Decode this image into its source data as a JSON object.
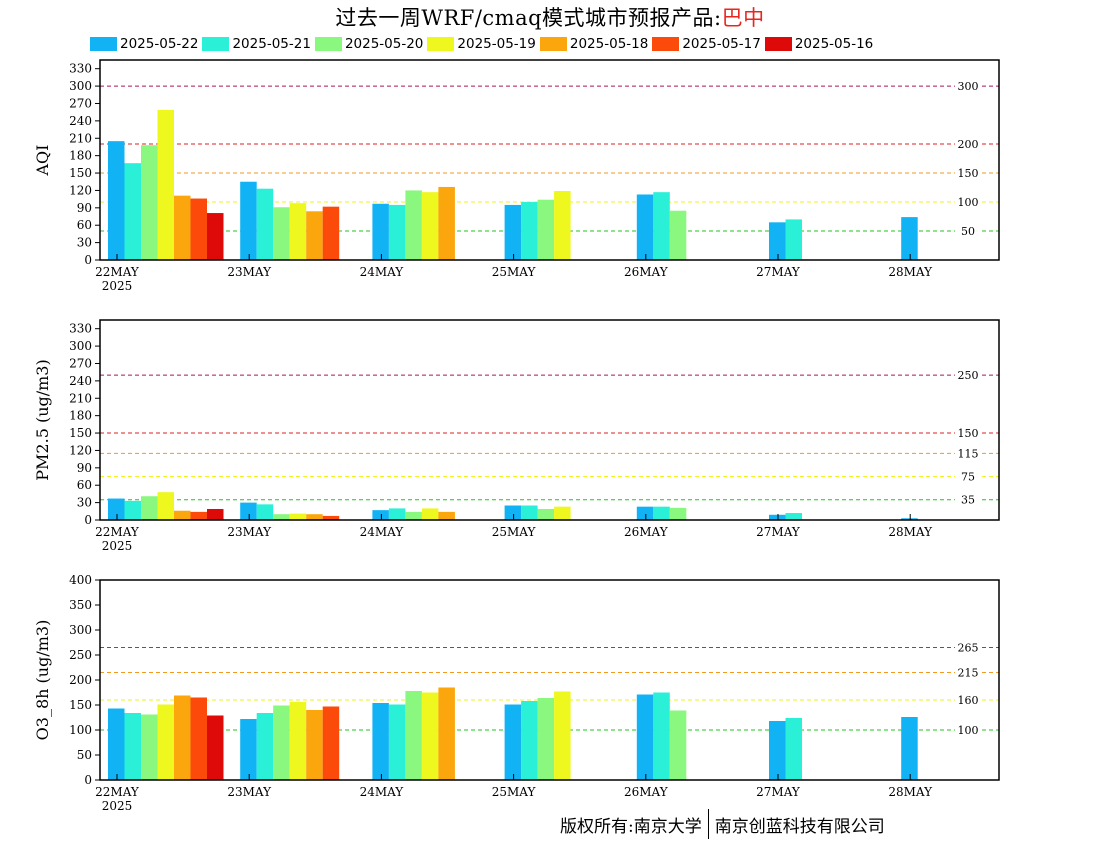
{
  "title": {
    "prefix": "过去一周WRF/cmaq模式城市预报产品:",
    "city": "巴中"
  },
  "legend": [
    {
      "label": "2025-05-22",
      "color": "#12b3f5"
    },
    {
      "label": "2025-05-21",
      "color": "#2af0d8"
    },
    {
      "label": "2025-05-20",
      "color": "#8af77e"
    },
    {
      "label": "2025-05-19",
      "color": "#eef71e"
    },
    {
      "label": "2025-05-18",
      "color": "#fba60c"
    },
    {
      "label": "2025-05-17",
      "color": "#fb4a0a"
    },
    {
      "label": "2025-05-16",
      "color": "#de0a0a"
    }
  ],
  "copyright": {
    "left": "版权所有:南京大学",
    "right": "南京创蓝科技有限公司"
  },
  "chart_data": [
    {
      "type": "bar",
      "ylabel": "AQI",
      "ylim": [
        0,
        345
      ],
      "yticks": [
        0,
        30,
        60,
        90,
        120,
        150,
        180,
        210,
        240,
        270,
        300,
        330
      ],
      "categories": [
        "22MAY",
        "23MAY",
        "24MAY",
        "25MAY",
        "26MAY",
        "27MAY",
        "28MAY"
      ],
      "year_label": "2025",
      "series": [
        {
          "name": "2025-05-22",
          "values": [
            205,
            135,
            97,
            95,
            113,
            65,
            74
          ]
        },
        {
          "name": "2025-05-21",
          "values": [
            167,
            123,
            95,
            100,
            117,
            70,
            null
          ]
        },
        {
          "name": "2025-05-20",
          "values": [
            198,
            91,
            120,
            104,
            85,
            null,
            null
          ]
        },
        {
          "name": "2025-05-19",
          "values": [
            259,
            98,
            117,
            119,
            null,
            null,
            null
          ]
        },
        {
          "name": "2025-05-18",
          "values": [
            111,
            84,
            126,
            null,
            null,
            null,
            null
          ]
        },
        {
          "name": "2025-05-17",
          "values": [
            106,
            92,
            null,
            null,
            null,
            null,
            null
          ]
        },
        {
          "name": "2025-05-16",
          "values": [
            81,
            null,
            null,
            null,
            null,
            null,
            null
          ]
        }
      ],
      "thresholds": [
        {
          "value": 50,
          "label": "50",
          "color": "#22c41e"
        },
        {
          "value": 100,
          "label": "100",
          "color": "#f2f21e"
        },
        {
          "value": 150,
          "label": "150",
          "color": "#f29a1e"
        },
        {
          "value": 200,
          "label": "200",
          "color": "#dd2222"
        },
        {
          "value": 300,
          "label": "300",
          "color": "#a8145a"
        }
      ]
    },
    {
      "type": "bar",
      "ylabel": "PM2.5 (ug/m3)",
      "ylim": [
        0,
        345
      ],
      "yticks": [
        0,
        30,
        60,
        90,
        120,
        150,
        180,
        210,
        240,
        270,
        300,
        330
      ],
      "categories": [
        "22MAY",
        "23MAY",
        "24MAY",
        "25MAY",
        "26MAY",
        "27MAY",
        "28MAY"
      ],
      "year_label": "2025",
      "series": [
        {
          "name": "2025-05-22",
          "values": [
            37,
            30,
            17,
            25,
            23,
            9,
            3
          ]
        },
        {
          "name": "2025-05-21",
          "values": [
            33,
            27,
            20,
            25,
            23,
            12,
            null
          ]
        },
        {
          "name": "2025-05-20",
          "values": [
            41,
            10,
            14,
            19,
            21,
            null,
            null
          ]
        },
        {
          "name": "2025-05-19",
          "values": [
            48,
            11,
            20,
            23,
            null,
            null,
            null
          ]
        },
        {
          "name": "2025-05-18",
          "values": [
            16,
            10,
            14,
            null,
            null,
            null,
            null
          ]
        },
        {
          "name": "2025-05-17",
          "values": [
            14,
            7,
            null,
            null,
            null,
            null,
            null
          ]
        },
        {
          "name": "2025-05-16",
          "values": [
            19,
            null,
            null,
            null,
            null,
            null,
            null
          ]
        }
      ],
      "thresholds": [
        {
          "value": 35,
          "label": "35",
          "color": "#22c41e"
        },
        {
          "value": 75,
          "label": "75",
          "color": "#f2f21e"
        },
        {
          "value": 115,
          "label": "115",
          "color": "#f29a1e"
        },
        {
          "value": 150,
          "label": "150",
          "color": "#dd2222"
        },
        {
          "value": 250,
          "label": "250",
          "color": "#a8145a"
        }
      ]
    },
    {
      "type": "bar",
      "ylabel": "O3_8h (ug/m3)",
      "ylim": [
        0,
        400
      ],
      "yticks": [
        0,
        50,
        100,
        150,
        200,
        250,
        300,
        350,
        400
      ],
      "categories": [
        "22MAY",
        "23MAY",
        "24MAY",
        "25MAY",
        "26MAY",
        "27MAY",
        "28MAY"
      ],
      "year_label": "2025",
      "series": [
        {
          "name": "2025-05-22",
          "values": [
            143,
            122,
            154,
            151,
            171,
            118,
            126
          ]
        },
        {
          "name": "2025-05-21",
          "values": [
            134,
            134,
            151,
            158,
            175,
            124,
            null
          ]
        },
        {
          "name": "2025-05-20",
          "values": [
            131,
            149,
            178,
            164,
            139,
            null,
            null
          ]
        },
        {
          "name": "2025-05-19",
          "values": [
            151,
            156,
            175,
            177,
            null,
            null,
            null
          ]
        },
        {
          "name": "2025-05-18",
          "values": [
            169,
            140,
            185,
            null,
            null,
            null,
            null
          ]
        },
        {
          "name": "2025-05-17",
          "values": [
            165,
            147,
            null,
            null,
            null,
            null,
            null
          ]
        },
        {
          "name": "2025-05-16",
          "values": [
            129,
            null,
            null,
            null,
            null,
            null,
            null
          ]
        }
      ],
      "thresholds": [
        {
          "value": 100,
          "label": "100",
          "color": "#22c41e"
        },
        {
          "value": 160,
          "label": "160",
          "color": "#f2f21e"
        },
        {
          "value": 215,
          "label": "215",
          "color": "#f29a1e"
        },
        {
          "value": 265,
          "label": "265",
          "color": "#dd2222"
        }
      ]
    }
  ]
}
